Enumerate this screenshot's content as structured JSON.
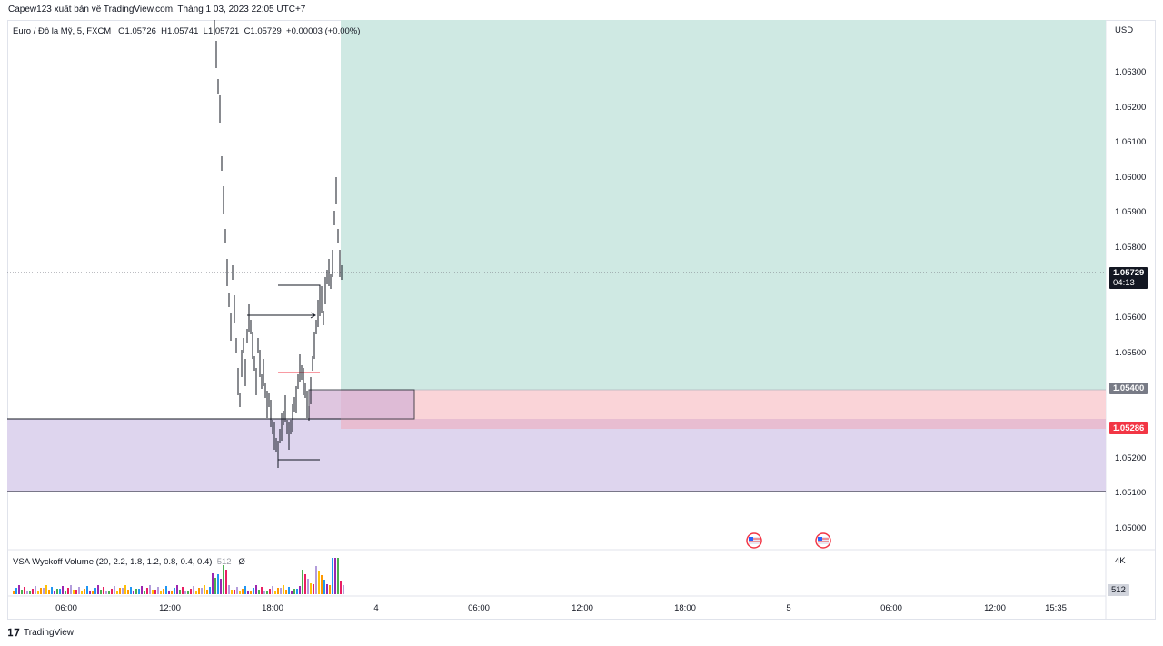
{
  "topbar": {
    "publish_text": "Capew123 xuất bản về TradingView.com, Tháng 1 03, 2023 22:05 UTC+7"
  },
  "legend": {
    "symbol": "Euro / Đô la Mỹ, 5, FXCM",
    "open": "O1.05726",
    "high": "H1.05741",
    "low": "L1.05721",
    "close": "C1.05729",
    "change": "+0.00003 (+0.00%)"
  },
  "price_axis": {
    "currency": "USD",
    "ticks": [
      "1.06300",
      "1.06200",
      "1.06100",
      "1.06000",
      "1.05900",
      "1.05800",
      "1.05600",
      "1.05500",
      "1.05200",
      "1.05100",
      "1.05000"
    ],
    "current_price": "1.05729",
    "countdown": "04:13",
    "stop_price": "1.05400",
    "entry_price": "1.05286"
  },
  "time_axis": {
    "ticks": [
      "06:00",
      "12:00",
      "18:00",
      "4",
      "06:00",
      "12:00",
      "18:00",
      "5",
      "06:00",
      "12:00",
      "15:35"
    ]
  },
  "indicator": {
    "name": "VSA Wyckoff Volume (20, 2.2, 1.8, 1.2, 0.8, 0.4, 0.4)",
    "value": "512",
    "extra": "Ø",
    "scale_top": "4K",
    "current_volume": "512"
  },
  "footer": {
    "brand": "TradingView"
  },
  "colors": {
    "profit_zone": "#cfe9e3",
    "loss_zone": "#fad4d8",
    "demand_zone": "#ded5ee",
    "current_tag_bg": "#131722",
    "stop_tag_bg": "#787b86",
    "entry_tag_bg": "#f23645"
  },
  "icons": [
    "us-flag-event-icon",
    "us-flag-event-icon",
    "tradingview-logo-icon"
  ]
}
